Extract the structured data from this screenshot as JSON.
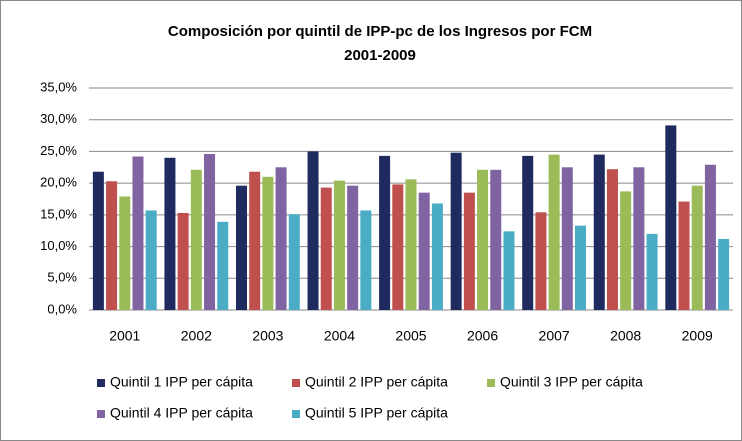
{
  "chart_data": {
    "type": "bar",
    "title": [
      "Composición por quintil de IPP-pc de los Ingresos  por FCM",
      "2001-2009"
    ],
    "categories": [
      "2001",
      "2002",
      "2003",
      "2004",
      "2005",
      "2006",
      "2007",
      "2008",
      "2009"
    ],
    "series": [
      {
        "name": "Quintil 1 IPP per cápita",
        "color": "#1f2a5e",
        "values": [
          21.8,
          24.0,
          19.6,
          25.0,
          24.3,
          24.8,
          24.3,
          24.5,
          29.1
        ]
      },
      {
        "name": "Quintil 2 IPP per cápita",
        "color": "#c0504d",
        "values": [
          20.3,
          15.3,
          21.8,
          19.3,
          19.8,
          18.5,
          15.4,
          22.2,
          17.1
        ]
      },
      {
        "name": "Quintil 3 IPP per cápita",
        "color": "#9bbb59",
        "values": [
          17.9,
          22.1,
          21.0,
          20.4,
          20.6,
          22.1,
          24.5,
          18.7,
          19.6
        ]
      },
      {
        "name": "Quintil 4 IPP per cápita",
        "color": "#8064a2",
        "values": [
          24.2,
          24.6,
          22.5,
          19.6,
          18.5,
          22.1,
          22.5,
          22.5,
          22.9
        ]
      },
      {
        "name": "Quintil 5 IPP per cápita",
        "color": "#4bacc6",
        "values": [
          15.7,
          13.9,
          15.1,
          15.7,
          16.8,
          12.4,
          13.3,
          12.0,
          11.2
        ]
      }
    ],
    "ylim": [
      0,
      35
    ],
    "yticks": [
      {
        "value": 0,
        "label": "0,0%"
      },
      {
        "value": 5,
        "label": "5,0%"
      },
      {
        "value": 10,
        "label": "10,0%"
      },
      {
        "value": 15,
        "label": "15,0%"
      },
      {
        "value": 20,
        "label": "20,0%"
      },
      {
        "value": 25,
        "label": "25,0%"
      },
      {
        "value": 30,
        "label": "30,0%"
      },
      {
        "value": 35,
        "label": "35,0%"
      }
    ],
    "grid": true,
    "legend": "bottom"
  }
}
